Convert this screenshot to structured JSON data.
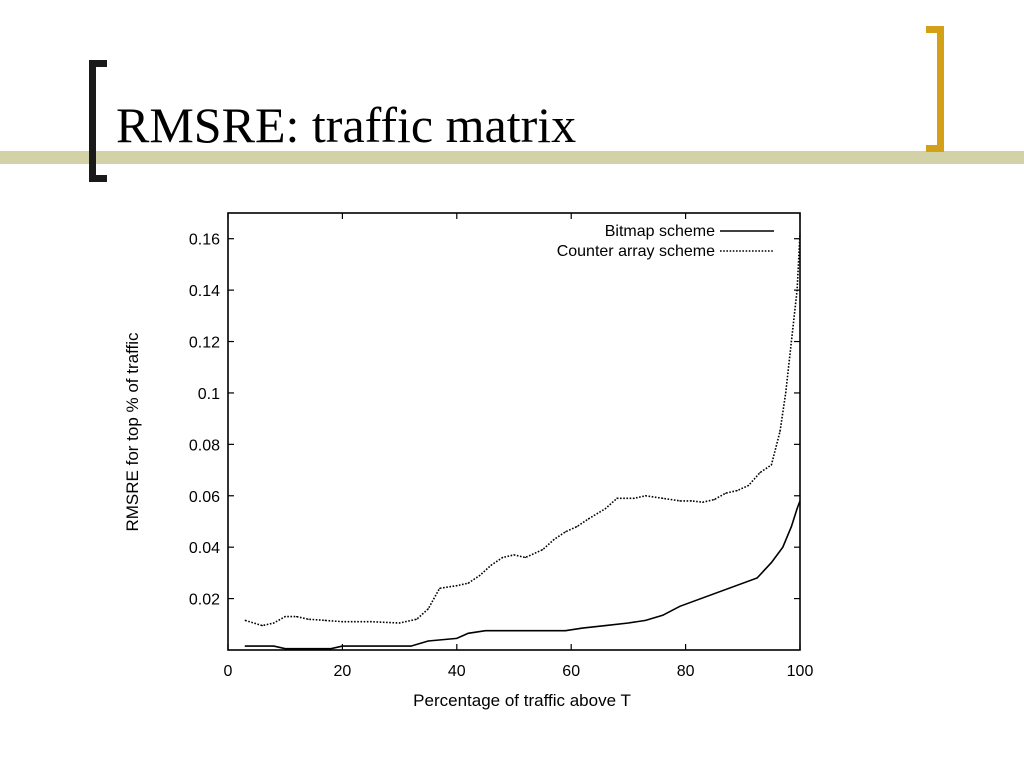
{
  "slide": {
    "title": "RMSRE: traffic matrix",
    "accent_color": "#d2d2a6",
    "bracket_left_color": "#1a1a1a",
    "bracket_right_color": "#d4a017"
  },
  "chart_data": {
    "type": "line",
    "xlabel": "Percentage of traffic above T",
    "ylabel": "RMSRE for top % of traffic",
    "xlim": [
      0,
      100
    ],
    "ylim": [
      0,
      0.17
    ],
    "xticks": [
      "0",
      "20",
      "40",
      "60",
      "80",
      "100"
    ],
    "xtick_values": [
      0,
      20,
      40,
      60,
      80,
      100
    ],
    "yticks": [
      "0.02",
      "0.04",
      "0.06",
      "0.08",
      "0.1",
      "0.12",
      "0.14",
      "0.16"
    ],
    "ytick_values": [
      0.02,
      0.04,
      0.06,
      0.08,
      0.1,
      0.12,
      0.14,
      0.16
    ],
    "legend_position": "top-right",
    "series": [
      {
        "name": "Bitmap scheme",
        "style": "solid",
        "x": [
          3,
          8,
          10,
          18,
          20,
          32,
          35,
          40,
          42,
          45,
          50,
          55,
          59,
          62,
          66,
          70,
          73,
          76,
          79,
          92.5,
          95,
          97,
          98.5,
          99.5,
          100
        ],
        "y": [
          0.0015,
          0.0015,
          0.0005,
          0.0005,
          0.0015,
          0.0015,
          0.0035,
          0.0045,
          0.0065,
          0.0075,
          0.0075,
          0.0075,
          0.0075,
          0.0085,
          0.0095,
          0.0105,
          0.0115,
          0.0135,
          0.017,
          0.028,
          0.034,
          0.04,
          0.048,
          0.055,
          0.058
        ]
      },
      {
        "name": "Counter array scheme",
        "style": "dotted",
        "x": [
          3,
          6,
          8,
          10,
          12,
          14,
          17,
          20,
          25,
          30,
          33,
          35,
          37,
          40,
          42,
          44,
          46,
          48,
          50,
          52,
          55,
          57,
          59,
          61,
          63,
          66,
          68,
          71,
          73,
          76,
          79,
          81,
          83,
          85,
          87,
          89,
          91,
          93,
          95,
          96.5,
          97.5,
          98.5,
          99.5,
          100
        ],
        "y": [
          0.0115,
          0.0095,
          0.0105,
          0.013,
          0.013,
          0.012,
          0.0115,
          0.011,
          0.011,
          0.0105,
          0.012,
          0.016,
          0.024,
          0.025,
          0.026,
          0.029,
          0.033,
          0.036,
          0.037,
          0.036,
          0.039,
          0.043,
          0.046,
          0.048,
          0.051,
          0.055,
          0.059,
          0.059,
          0.06,
          0.059,
          0.058,
          0.058,
          0.0575,
          0.0585,
          0.061,
          0.062,
          0.064,
          0.069,
          0.072,
          0.085,
          0.1,
          0.12,
          0.14,
          0.162
        ]
      }
    ]
  }
}
